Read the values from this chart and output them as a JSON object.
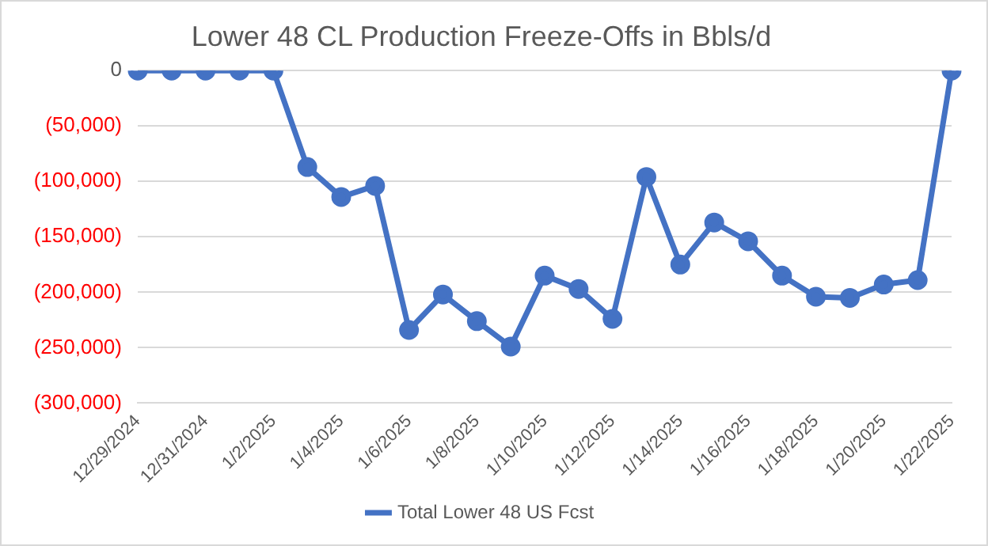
{
  "chart_data": {
    "type": "line",
    "title": "Lower 48 CL Production Freeze-Offs in Bbls/d",
    "categories": [
      "12/29/2024",
      null,
      "12/31/2024",
      null,
      "1/2/2025",
      null,
      "1/4/2025",
      null,
      "1/6/2025",
      null,
      "1/8/2025",
      null,
      "1/10/2025",
      null,
      "1/12/2025",
      null,
      "1/14/2025",
      null,
      "1/16/2025",
      null,
      "1/18/2025",
      null,
      "1/20/2025",
      null,
      "1/22/2025"
    ],
    "series": [
      {
        "name": "Total Lower 48 US Fcst",
        "color": "#4472c4",
        "values": [
          0,
          0,
          0,
          0,
          0,
          -87000,
          -114000,
          -104000,
          -234000,
          -202000,
          -226000,
          -249000,
          -185000,
          -197000,
          -224000,
          -96000,
          -175000,
          -137000,
          -154000,
          -185000,
          -204000,
          -205000,
          -193000,
          -189000,
          0
        ]
      }
    ],
    "ylim": [
      -300000,
      0
    ],
    "yticks": [
      {
        "value": -300000,
        "label": "(300,000)"
      },
      {
        "value": -250000,
        "label": "(250,000)"
      },
      {
        "value": -200000,
        "label": "(200,000)"
      },
      {
        "value": -150000,
        "label": "(150,000)"
      },
      {
        "value": -100000,
        "label": "(100,000)"
      },
      {
        "value": -50000,
        "label": "(50,000)"
      },
      0
    ],
    "grid": "y",
    "legend": "bottom",
    "marker": "circle",
    "line_style": "solid"
  }
}
